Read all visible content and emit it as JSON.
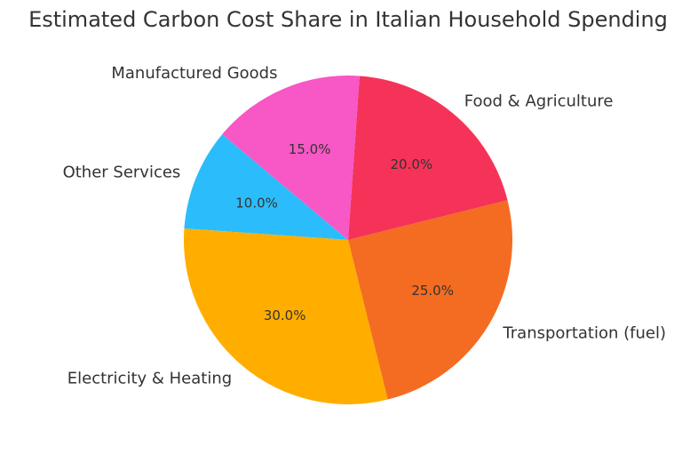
{
  "chart_data": {
    "type": "pie",
    "title": "Estimated Carbon Cost Share in Italian Household Spending",
    "start_angle_deg": 140,
    "direction": "counterclockwise",
    "slices": [
      {
        "label": "Other Services",
        "value": 10.0,
        "pct_label": "10.0%",
        "color": "#2BBDFB"
      },
      {
        "label": "Electricity & Heating",
        "value": 30.0,
        "pct_label": "30.0%",
        "color": "#FFAE00"
      },
      {
        "label": "Transportation (fuel)",
        "value": 25.0,
        "pct_label": "25.0%",
        "color": "#F46C22"
      },
      {
        "label": "Food & Agriculture",
        "value": 20.0,
        "pct_label": "20.0%",
        "color": "#F53358"
      },
      {
        "label": "Manufactured Goods",
        "value": 15.0,
        "pct_label": "15.0%",
        "color": "#F857C6"
      }
    ]
  }
}
